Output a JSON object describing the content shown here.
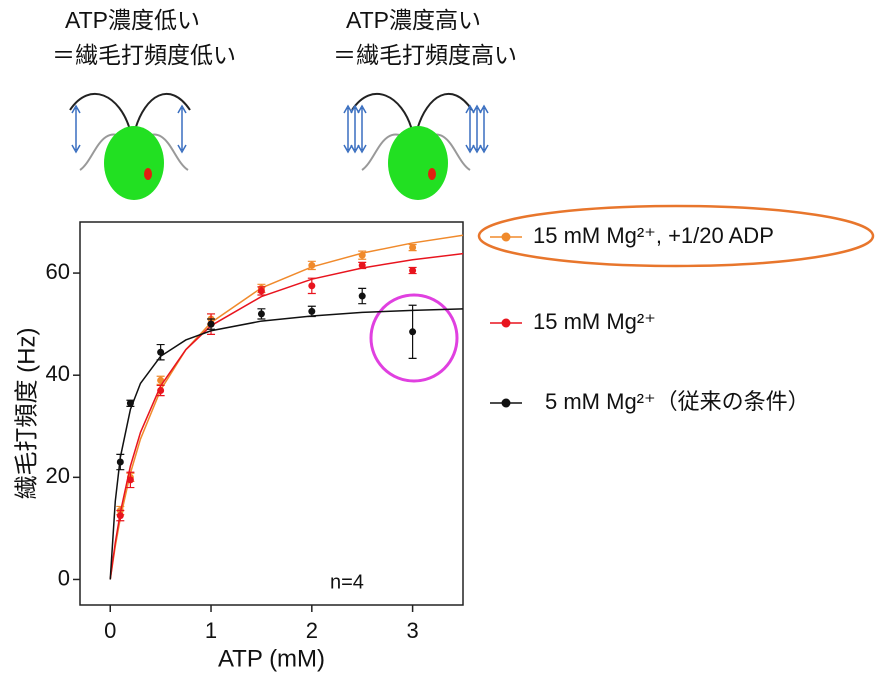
{
  "captions": [
    {
      "line1": "ATP濃度低い",
      "line2": "＝繊毛打頻度低い"
    },
    {
      "line1": "ATP濃度高い",
      "line2": "＝繊毛打頻度高い"
    }
  ],
  "chart_data": {
    "type": "scatter",
    "xlabel": "ATP (mM)",
    "ylabel": "繊毛打頻度 (Hz)",
    "annotation": "n=4",
    "xlim": [
      -0.3,
      3.5
    ],
    "ylim": [
      -5,
      70
    ],
    "xticks": [
      0,
      1,
      2,
      3
    ],
    "yticks": [
      0,
      20,
      40,
      60
    ],
    "x": [
      0.1,
      0.2,
      0.5,
      1.0,
      1.5,
      2.0,
      2.5,
      3.0
    ],
    "series": [
      {
        "name": "15 mM Mg²⁺, +1/20 ADP",
        "color": "#f08a2c",
        "values": [
          13.5,
          20,
          39,
          51,
          57,
          61.5,
          63.5,
          65
        ],
        "errors": [
          0.8,
          0.8,
          0.8,
          1,
          0.8,
          0.8,
          0.8,
          0.6
        ],
        "fit": {
          "x": [
            0,
            0.05,
            0.1,
            0.2,
            0.3,
            0.5,
            0.75,
            1,
            1.5,
            2,
            2.5,
            3,
            3.5
          ],
          "values": [
            0,
            6.5,
            12.0,
            20.8,
            27.5,
            37.1,
            45.0,
            50.3,
            57.1,
            61.2,
            63.9,
            65.9,
            67.4
          ]
        }
      },
      {
        "name": "15 mM Mg²⁺",
        "color": "#e8141e",
        "values": [
          12.5,
          19.5,
          37,
          50,
          56.5,
          57.5,
          61.5,
          60.5
        ],
        "errors": [
          1,
          1.5,
          1,
          2,
          0.8,
          1.5,
          0.6,
          0.6
        ],
        "fit": {
          "x": [
            0,
            0.05,
            0.1,
            0.2,
            0.3,
            0.5,
            0.75,
            1,
            1.5,
            2,
            2.5,
            3,
            3.5
          ],
          "values": [
            0,
            7.2,
            13.1,
            22.2,
            28.8,
            37.9,
            45.0,
            49.7,
            55.4,
            58.8,
            61.0,
            62.6,
            63.8
          ]
        }
      },
      {
        "name": "5 mM Mg²⁺（従来の条件）",
        "color": "#111111",
        "values": [
          23,
          34.5,
          44.5,
          50,
          52,
          52.5,
          55.5,
          48.5
        ],
        "errors": [
          1.5,
          0.6,
          1.5,
          1,
          1,
          1,
          1.5,
          5.2
        ],
        "fit": {
          "x": [
            0,
            0.05,
            0.1,
            0.2,
            0.3,
            0.5,
            0.75,
            1,
            1.5,
            2,
            2.5,
            3,
            3.5
          ],
          "values": [
            0,
            15.3,
            23.9,
            33.3,
            38.4,
            43.7,
            46.9,
            48.7,
            50.6,
            51.6,
            52.3,
            52.7,
            53.0
          ]
        }
      }
    ]
  }
}
